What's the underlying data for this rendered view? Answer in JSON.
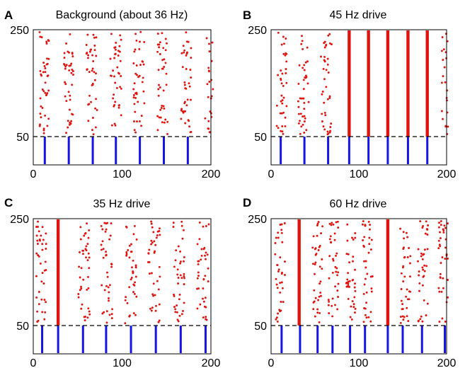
{
  "colors": {
    "spike": "#e0140f",
    "drive": "#1414e6",
    "frame": "#000000",
    "divider": "#000000"
  },
  "chart_data": [
    {
      "type": "scatter",
      "panel": "A",
      "title": "Background (about 36 Hz)",
      "xlim": [
        0,
        200
      ],
      "y_ticks": [
        "250",
        "50"
      ],
      "x_ticks": [
        "0",
        "100",
        "200"
      ],
      "divider_y": 50,
      "drive_times": [
        13,
        40,
        67,
        93,
        120,
        147,
        174
      ],
      "volleys": [
        {
          "t": 12,
          "width": 2.6,
          "n": 42,
          "solid": false
        },
        {
          "t": 39,
          "width": 2.8,
          "n": 40,
          "solid": false
        },
        {
          "t": 66,
          "width": 2.8,
          "n": 40,
          "solid": false
        },
        {
          "t": 93,
          "width": 2.8,
          "n": 40,
          "solid": false
        },
        {
          "t": 119,
          "width": 2.8,
          "n": 40,
          "solid": false
        },
        {
          "t": 146,
          "width": 2.8,
          "n": 40,
          "solid": false
        },
        {
          "t": 172,
          "width": 2.8,
          "n": 40,
          "solid": false
        },
        {
          "t": 198,
          "width": 2.2,
          "n": 24,
          "solid": false
        }
      ]
    },
    {
      "type": "scatter",
      "panel": "B",
      "title": "45 Hz drive",
      "xlim": [
        0,
        200
      ],
      "y_ticks": [
        "250",
        "50"
      ],
      "x_ticks": [
        "0",
        "100",
        "200"
      ],
      "divider_y": 50,
      "drive_times": [
        11,
        38,
        65,
        89,
        111,
        133,
        156,
        178
      ],
      "volleys": [
        {
          "t": 12,
          "width": 2.6,
          "n": 38,
          "solid": false
        },
        {
          "t": 37,
          "width": 2.8,
          "n": 40,
          "solid": false
        },
        {
          "t": 63,
          "width": 2.8,
          "n": 40,
          "solid": false
        },
        {
          "t": 89,
          "width": 1.0,
          "n": 0,
          "solid": true
        },
        {
          "t": 111,
          "width": 1.0,
          "n": 0,
          "solid": true
        },
        {
          "t": 133,
          "width": 1.0,
          "n": 0,
          "solid": true
        },
        {
          "t": 156,
          "width": 1.0,
          "n": 0,
          "solid": true
        },
        {
          "t": 178,
          "width": 1.0,
          "n": 0,
          "solid": true
        },
        {
          "t": 198,
          "width": 1.6,
          "n": 22,
          "solid": false
        }
      ]
    },
    {
      "type": "scatter",
      "panel": "C",
      "title": "35 Hz drive",
      "xlim": [
        0,
        200
      ],
      "y_ticks": [
        "250",
        "50"
      ],
      "x_ticks": [
        "0",
        "100",
        "200"
      ],
      "divider_y": 50,
      "drive_times": [
        10,
        28,
        56,
        82,
        110,
        138,
        166,
        194
      ],
      "volleys": [
        {
          "t": 9,
          "width": 2.6,
          "n": 40,
          "solid": false
        },
        {
          "t": 28,
          "width": 1.0,
          "n": 0,
          "solid": true
        },
        {
          "t": 57,
          "width": 3.0,
          "n": 42,
          "solid": false
        },
        {
          "t": 83,
          "width": 3.0,
          "n": 40,
          "solid": false
        },
        {
          "t": 110,
          "width": 3.0,
          "n": 40,
          "solid": false
        },
        {
          "t": 136,
          "width": 3.0,
          "n": 40,
          "solid": false
        },
        {
          "t": 164,
          "width": 3.0,
          "n": 40,
          "solid": false
        },
        {
          "t": 191,
          "width": 3.0,
          "n": 40,
          "solid": false
        }
      ]
    },
    {
      "type": "scatter",
      "panel": "D",
      "title": "60 Hz drive",
      "xlim": [
        0,
        200
      ],
      "y_ticks": [
        "250",
        "50"
      ],
      "x_ticks": [
        "0",
        "100",
        "200"
      ],
      "divider_y": 50,
      "drive_times": [
        12,
        33,
        53,
        70,
        90,
        107,
        133,
        150,
        172,
        198
      ],
      "volleys": [
        {
          "t": 10,
          "width": 2.6,
          "n": 36,
          "solid": false
        },
        {
          "t": 32,
          "width": 1.0,
          "n": 0,
          "solid": true
        },
        {
          "t": 53,
          "width": 2.6,
          "n": 38,
          "solid": false
        },
        {
          "t": 71,
          "width": 2.6,
          "n": 38,
          "solid": false
        },
        {
          "t": 91,
          "width": 2.6,
          "n": 38,
          "solid": false
        },
        {
          "t": 110,
          "width": 2.6,
          "n": 38,
          "solid": false
        },
        {
          "t": 133,
          "width": 1.0,
          "n": 0,
          "solid": true
        },
        {
          "t": 153,
          "width": 2.6,
          "n": 38,
          "solid": false
        },
        {
          "t": 173,
          "width": 2.6,
          "n": 38,
          "solid": false
        },
        {
          "t": 196,
          "width": 2.6,
          "n": 38,
          "solid": false
        }
      ]
    }
  ]
}
